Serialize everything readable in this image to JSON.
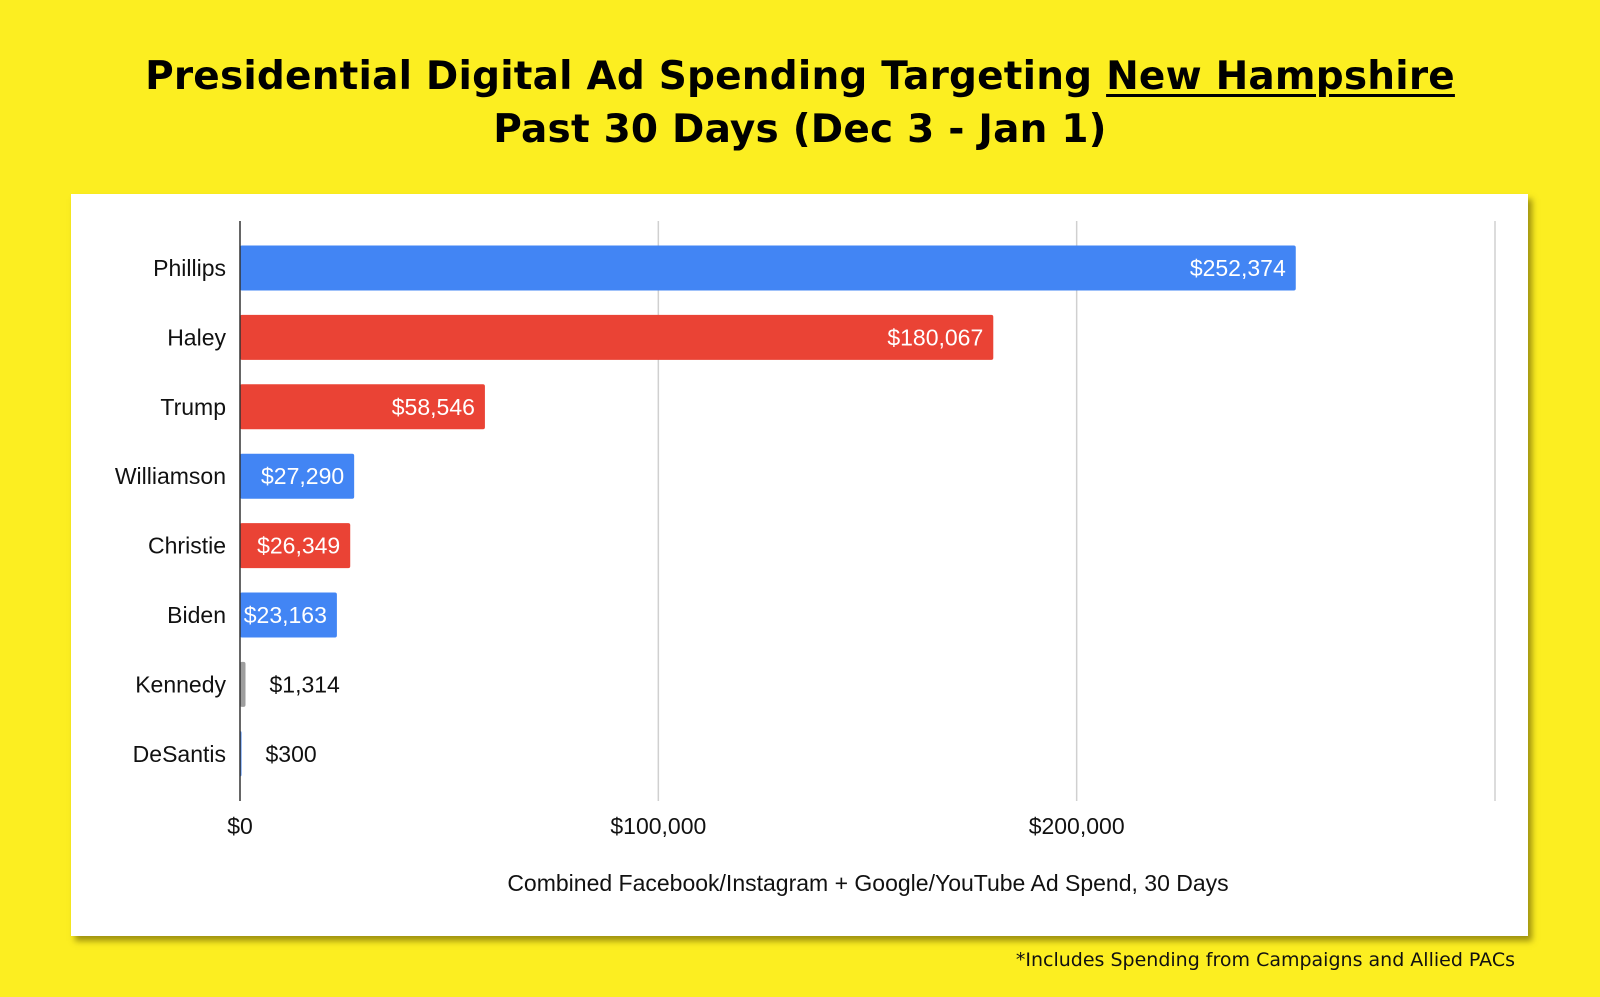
{
  "title_line1_prefix": "Presidential Digital Ad Spending Targeting ",
  "title_line1_underlined": "New Hampshire",
  "title_line2": "Past 30 Days (Dec 3 - Jan 1)",
  "footnote": "*Includes Spending from Campaigns and Allied PACs",
  "colors": {
    "democrat": "#4285f4",
    "republican": "#ea4335",
    "independent": "#9e9e9e",
    "background": "#fcee21"
  },
  "chart_data": {
    "type": "bar",
    "orientation": "horizontal",
    "title": "Presidential Digital Ad Spending Targeting New Hampshire Past 30 Days (Dec 3 - Jan 1)",
    "xlabel": "Combined Facebook/Instagram + Google/YouTube Ad Spend, 30 Days",
    "ylabel": "",
    "xlim": [
      0,
      300000
    ],
    "xticks": [
      0,
      100000,
      200000,
      300000
    ],
    "xtick_labels": [
      "$0",
      "$100,000",
      "$200,000",
      ""
    ],
    "grid": true,
    "categories": [
      "Phillips",
      "Haley",
      "Trump",
      "Williamson",
      "Christie",
      "Biden",
      "Kennedy",
      "DeSantis"
    ],
    "values": [
      252374,
      180067,
      58546,
      27290,
      26349,
      23163,
      1314,
      300
    ],
    "labels": [
      "$252,374",
      "$180,067",
      "$58,546",
      "$27,290",
      "$26,349",
      "$23,163",
      "$1,314",
      "$300"
    ],
    "bar_colors": [
      "#4285f4",
      "#ea4335",
      "#ea4335",
      "#4285f4",
      "#ea4335",
      "#4285f4",
      "#9e9e9e",
      "#4285f4"
    ]
  }
}
